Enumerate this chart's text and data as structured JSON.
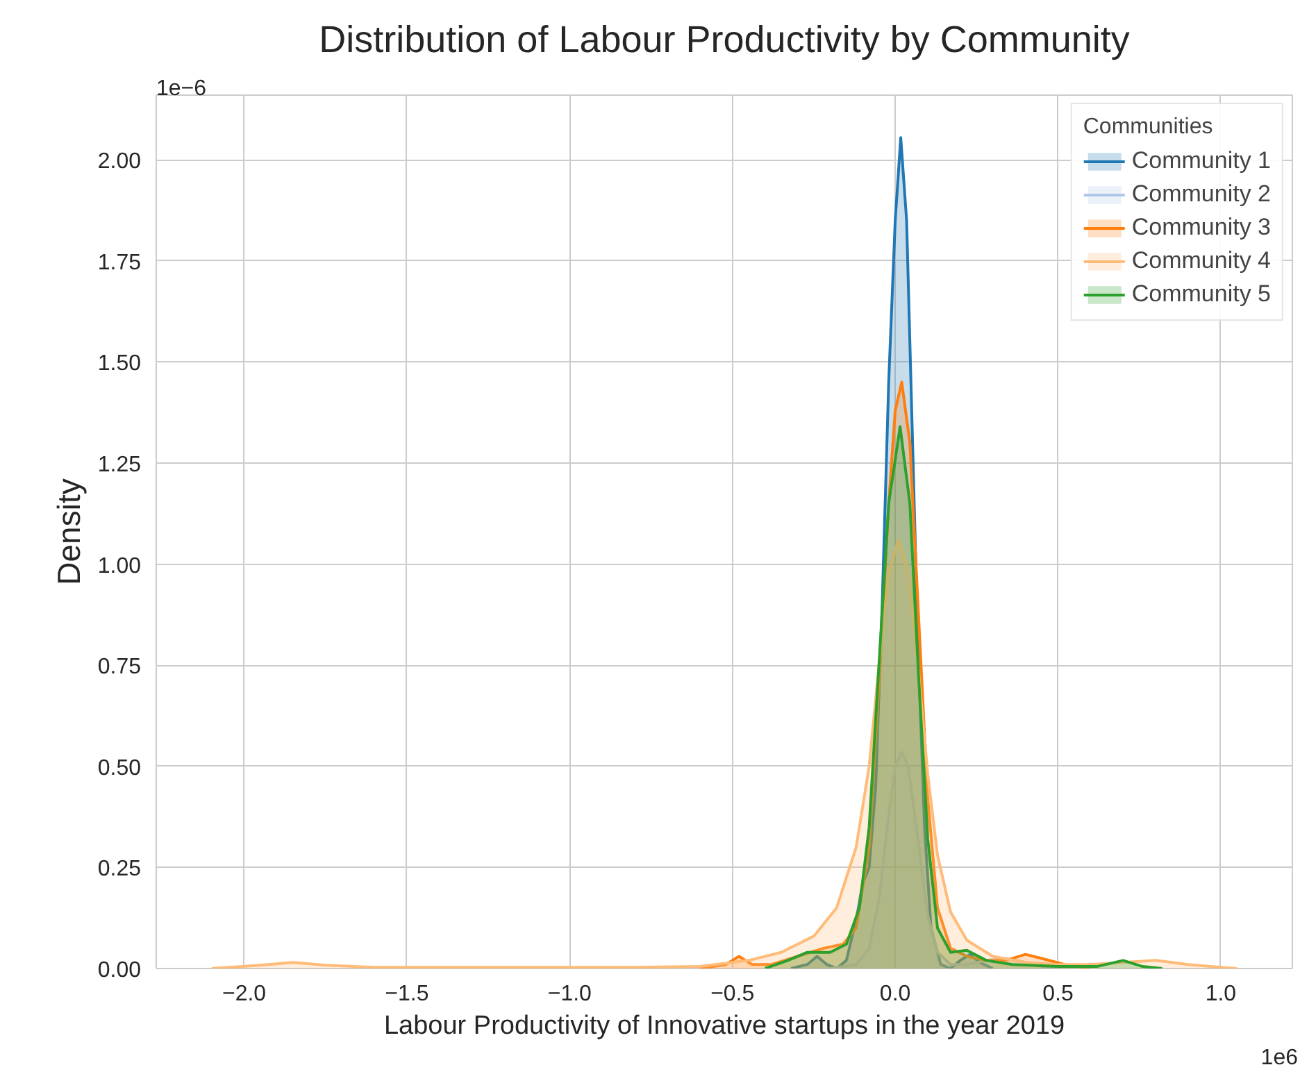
{
  "chart_data": {
    "type": "area",
    "title": "Distribution of Labour Productivity by Community",
    "xlabel": "Labour Productivity of Innovative startups in the year 2019",
    "ylabel": "Density",
    "legend_title": "Communities",
    "legend": "top right",
    "grid": true,
    "annotations": [
      "1e−6",
      "1e6"
    ],
    "xlim": [
      -2.27,
      1.22
    ],
    "ylim": [
      0,
      2.16
    ],
    "xticks": [
      {
        "value": -2,
        "label": "−2.0"
      },
      {
        "value": -1.5,
        "label": "−1.5"
      },
      {
        "value": -1,
        "label": "−1.0"
      },
      {
        "value": -0.5,
        "label": "−0.5"
      },
      {
        "value": 0,
        "label": "0.0"
      },
      {
        "value": 0.5,
        "label": "0.5"
      },
      {
        "value": 1,
        "label": "1.0"
      }
    ],
    "yticks": [
      {
        "value": 0,
        "label": "0.00"
      },
      {
        "value": 0.25,
        "label": "0.25"
      },
      {
        "value": 0.5,
        "label": "0.50"
      },
      {
        "value": 0.75,
        "label": "0.75"
      },
      {
        "value": 1,
        "label": "1.00"
      },
      {
        "value": 1.25,
        "label": "1.25"
      },
      {
        "value": 1.5,
        "label": "1.50"
      },
      {
        "value": 1.75,
        "label": "1.75"
      },
      {
        "value": 2,
        "label": "2.00"
      }
    ],
    "series": [
      {
        "name": "Community 1",
        "color": "#1f77b4",
        "x": [
          -0.32,
          -0.27,
          -0.24,
          -0.21,
          -0.18,
          -0.15,
          -0.12,
          -0.1,
          -0.08,
          -0.06,
          -0.04,
          -0.02,
          0.0,
          0.017,
          0.035,
          0.05,
          0.07,
          0.09,
          0.11,
          0.14,
          0.17,
          0.2,
          0.23,
          0.26,
          0.3
        ],
        "values": [
          0,
          0.01,
          0.03,
          0.01,
          0,
          0.02,
          0.12,
          0.21,
          0.25,
          0.45,
          0.9,
          1.45,
          1.85,
          2.055,
          1.85,
          1.4,
          0.8,
          0.35,
          0.1,
          0.01,
          0,
          0.02,
          0.035,
          0.015,
          0
        ]
      },
      {
        "name": "Community 2",
        "color": "#aec7e8",
        "x": [
          -0.2,
          -0.12,
          -0.08,
          -0.05,
          -0.02,
          0.0,
          0.02,
          0.04,
          0.07,
          0.1,
          0.13,
          0.17,
          0.22,
          0.28,
          0.34,
          0.4,
          0.45,
          0.5
        ],
        "values": [
          0,
          0.01,
          0.05,
          0.17,
          0.38,
          0.5,
          0.535,
          0.5,
          0.32,
          0.13,
          0.04,
          0.01,
          0.01,
          0.02,
          0.025,
          0.015,
          0.005,
          0
        ]
      },
      {
        "name": "Community 3",
        "color": "#ff7f0e",
        "x": [
          -0.6,
          -0.52,
          -0.48,
          -0.44,
          -0.38,
          -0.3,
          -0.22,
          -0.16,
          -0.12,
          -0.08,
          -0.05,
          -0.02,
          0.0,
          0.02,
          0.045,
          0.07,
          0.1,
          0.13,
          0.17,
          0.22,
          0.28,
          0.34,
          0.4,
          0.45,
          0.52,
          0.6
        ],
        "values": [
          0,
          0.01,
          0.03,
          0.01,
          0.01,
          0.03,
          0.05,
          0.06,
          0.1,
          0.3,
          0.7,
          1.15,
          1.38,
          1.45,
          1.3,
          0.9,
          0.42,
          0.15,
          0.05,
          0.03,
          0.02,
          0.02,
          0.035,
          0.025,
          0.01,
          0
        ]
      },
      {
        "name": "Community 4",
        "color": "#ffbb78",
        "x": [
          -2.1,
          -1.95,
          -1.85,
          -1.75,
          -1.6,
          -1.2,
          -0.8,
          -0.6,
          -0.45,
          -0.35,
          -0.25,
          -0.18,
          -0.12,
          -0.08,
          -0.05,
          -0.02,
          0.01,
          0.04,
          0.07,
          0.1,
          0.13,
          0.17,
          0.22,
          0.3,
          0.4,
          0.5,
          0.6,
          0.7,
          0.8,
          0.9,
          1.0,
          1.05
        ],
        "values": [
          0,
          0.008,
          0.015,
          0.008,
          0.003,
          0.003,
          0.003,
          0.005,
          0.02,
          0.04,
          0.08,
          0.15,
          0.3,
          0.5,
          0.75,
          0.98,
          1.06,
          0.98,
          0.75,
          0.48,
          0.28,
          0.14,
          0.07,
          0.03,
          0.015,
          0.01,
          0.01,
          0.015,
          0.02,
          0.01,
          0.003,
          0
        ]
      },
      {
        "name": "Community 5",
        "color": "#2ca02c",
        "x": [
          -0.4,
          -0.33,
          -0.27,
          -0.2,
          -0.15,
          -0.11,
          -0.08,
          -0.05,
          -0.02,
          0.015,
          0.045,
          0.07,
          0.1,
          0.13,
          0.17,
          0.22,
          0.28,
          0.36,
          0.5,
          0.62,
          0.7,
          0.76,
          0.82
        ],
        "values": [
          0,
          0.02,
          0.04,
          0.04,
          0.06,
          0.15,
          0.35,
          0.75,
          1.15,
          1.34,
          1.15,
          0.75,
          0.32,
          0.1,
          0.04,
          0.045,
          0.02,
          0.01,
          0.005,
          0.005,
          0.02,
          0.005,
          0
        ]
      }
    ]
  }
}
